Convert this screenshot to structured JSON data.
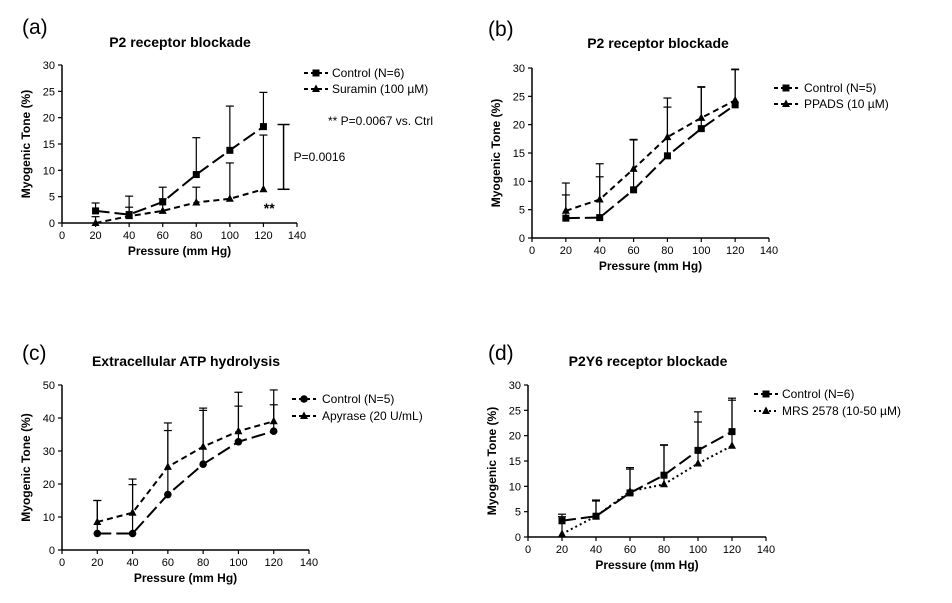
{
  "chart_data": [
    {
      "type": "line",
      "panel_label": "(a)",
      "title": "P2 receptor blockade",
      "xlabel": "Pressure (mm Hg)",
      "ylabel": "Myogenic Tone (%)",
      "xlim": [
        0,
        140
      ],
      "ylim": [
        0,
        30
      ],
      "x_ticks": [
        0,
        20,
        40,
        60,
        80,
        100,
        120,
        140
      ],
      "y_ticks": [
        0,
        5,
        10,
        15,
        20,
        25,
        30
      ],
      "grid": false,
      "legend_position": "top-right",
      "x": [
        20,
        40,
        60,
        80,
        100,
        120
      ],
      "series": [
        {
          "name": "Control (N=6)",
          "marker": "square",
          "dash": "long-dash",
          "values": [
            2.3,
            1.6,
            4.0,
            9.2,
            13.8,
            18.3
          ],
          "error": [
            1.5,
            3.5,
            2.8,
            7.0,
            8.4,
            6.5
          ]
        },
        {
          "name": "Suramin (100 µM)",
          "marker": "triangle",
          "dash": "short-dash",
          "values": [
            0.0,
            1.3,
            2.3,
            3.9,
            4.6,
            6.4
          ],
          "error": [
            1.2,
            1.7,
            2.3,
            2.9,
            6.8,
            10.3
          ]
        }
      ],
      "annotations": [
        {
          "text": "** P=0.0067 vs. Ctrl",
          "where": "legend"
        },
        {
          "text": "**",
          "at": [
            122,
            3.0
          ]
        },
        {
          "text": "P=0.0016",
          "bracket": {
            "x": 132,
            "y1": 6.4,
            "y2": 18.7
          }
        }
      ]
    },
    {
      "type": "line",
      "panel_label": "(b)",
      "title": "P2 receptor blockade",
      "xlabel": "Pressure (mm Hg)",
      "ylabel": "Myogenic Tone (%)",
      "xlim": [
        0,
        140
      ],
      "ylim": [
        0,
        30
      ],
      "x_ticks": [
        0,
        20,
        40,
        60,
        80,
        100,
        120,
        140
      ],
      "y_ticks": [
        0,
        5,
        10,
        15,
        20,
        25,
        30
      ],
      "grid": false,
      "legend_position": "top-right",
      "x": [
        20,
        40,
        60,
        80,
        100,
        120
      ],
      "series": [
        {
          "name": "Control (N=5)",
          "marker": "square",
          "dash": "long-dash",
          "values": [
            3.5,
            3.6,
            8.5,
            14.5,
            19.3,
            23.5
          ],
          "error": [
            6.2,
            9.5,
            8.8,
            10.2,
            7.3,
            6.3
          ]
        },
        {
          "name": "PPADS (10 µM)",
          "marker": "triangle",
          "dash": "short-dash",
          "values": [
            4.8,
            6.8,
            12.2,
            17.8,
            21.2,
            24.3
          ],
          "error": [
            2.8,
            4.0,
            5.2,
            5.3,
            5.5,
            5.4
          ]
        }
      ],
      "annotations": []
    },
    {
      "type": "line",
      "panel_label": "(c)",
      "title": "Extracellular ATP hydrolysis",
      "xlabel": "Pressure (mm Hg)",
      "ylabel": "Myogenic Tone (%)",
      "xlim": [
        0,
        140
      ],
      "ylim": [
        0,
        50
      ],
      "x_ticks": [
        0,
        20,
        40,
        60,
        80,
        100,
        120,
        140
      ],
      "y_ticks": [
        0,
        10,
        20,
        30,
        40,
        50
      ],
      "grid": false,
      "legend_position": "top-right",
      "x": [
        20,
        40,
        60,
        80,
        100,
        120
      ],
      "series": [
        {
          "name": "Control (N=5)",
          "marker": "circle",
          "dash": "long-dash",
          "values": [
            5.0,
            5.0,
            16.8,
            26.0,
            32.8,
            36.0
          ],
          "error": [
            10.0,
            16.5,
            21.7,
            17.0,
            15.0,
            12.5
          ]
        },
        {
          "name": "Apyrase (20 U/mL)",
          "marker": "triangle",
          "dash": "short-dash",
          "values": [
            8.5,
            11.3,
            25.2,
            31.3,
            36.0,
            39.0
          ],
          "error": [
            6.5,
            8.5,
            11.0,
            11.0,
            7.6,
            5.0
          ]
        }
      ],
      "annotations": []
    },
    {
      "type": "line",
      "panel_label": "(d)",
      "title": "P2Y6 receptor blockade",
      "xlabel": "Pressure (mm Hg)",
      "ylabel": "Myogenic Tone (%)",
      "xlim": [
        0,
        140
      ],
      "ylim": [
        0,
        30
      ],
      "x_ticks": [
        0,
        20,
        40,
        60,
        80,
        100,
        120,
        140
      ],
      "y_ticks": [
        0,
        5,
        10,
        15,
        20,
        25,
        30
      ],
      "grid": false,
      "legend_position": "top-right",
      "x": [
        20,
        40,
        60,
        80,
        100,
        120
      ],
      "series": [
        {
          "name": "Control (N=6)",
          "marker": "square",
          "dash": "long-dash",
          "values": [
            3.2,
            4.1,
            8.7,
            12.2,
            17.1,
            20.8
          ],
          "error": [
            1.3,
            3.2,
            5.0,
            6.0,
            7.6,
            6.6
          ]
        },
        {
          "name": "MRS 2578 (10-50 µM)",
          "marker": "triangle",
          "dash": "dotted",
          "values": [
            0.6,
            4.1,
            9.0,
            10.4,
            14.5,
            18.0
          ],
          "error": [
            3.4,
            3.0,
            4.4,
            7.7,
            8.2,
            9.0
          ]
        }
      ],
      "annotations": []
    }
  ]
}
